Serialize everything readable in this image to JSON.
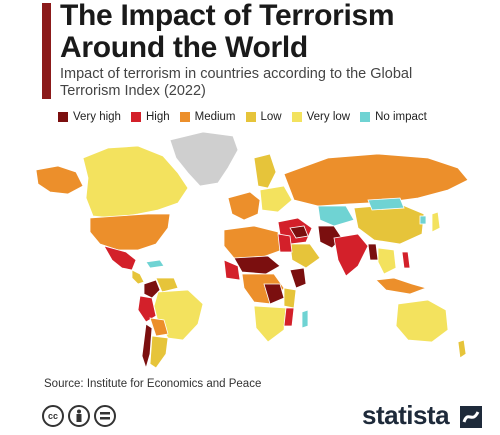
{
  "header": {
    "title": "The Impact of Terrorism Around the World",
    "subtitle": "Impact of terrorism in countries according to the Global Terrorism Index (2022)"
  },
  "legend": [
    {
      "label": "Very high",
      "color": "#7b0f0f"
    },
    {
      "label": "High",
      "color": "#d3202a"
    },
    {
      "label": "Medium",
      "color": "#ec8f2b"
    },
    {
      "label": "Low",
      "color": "#e6c43a"
    },
    {
      "label": "Very low",
      "color": "#f3e25e"
    },
    {
      "label": "No impact",
      "color": "#6fd3d3"
    }
  ],
  "no_data_color": "#cfcfcf",
  "source": "Source: Institute for Economics and Peace",
  "branding": {
    "logo": "statista",
    "license_icons": [
      "cc-icon",
      "by-icon",
      "nd-icon"
    ]
  }
}
